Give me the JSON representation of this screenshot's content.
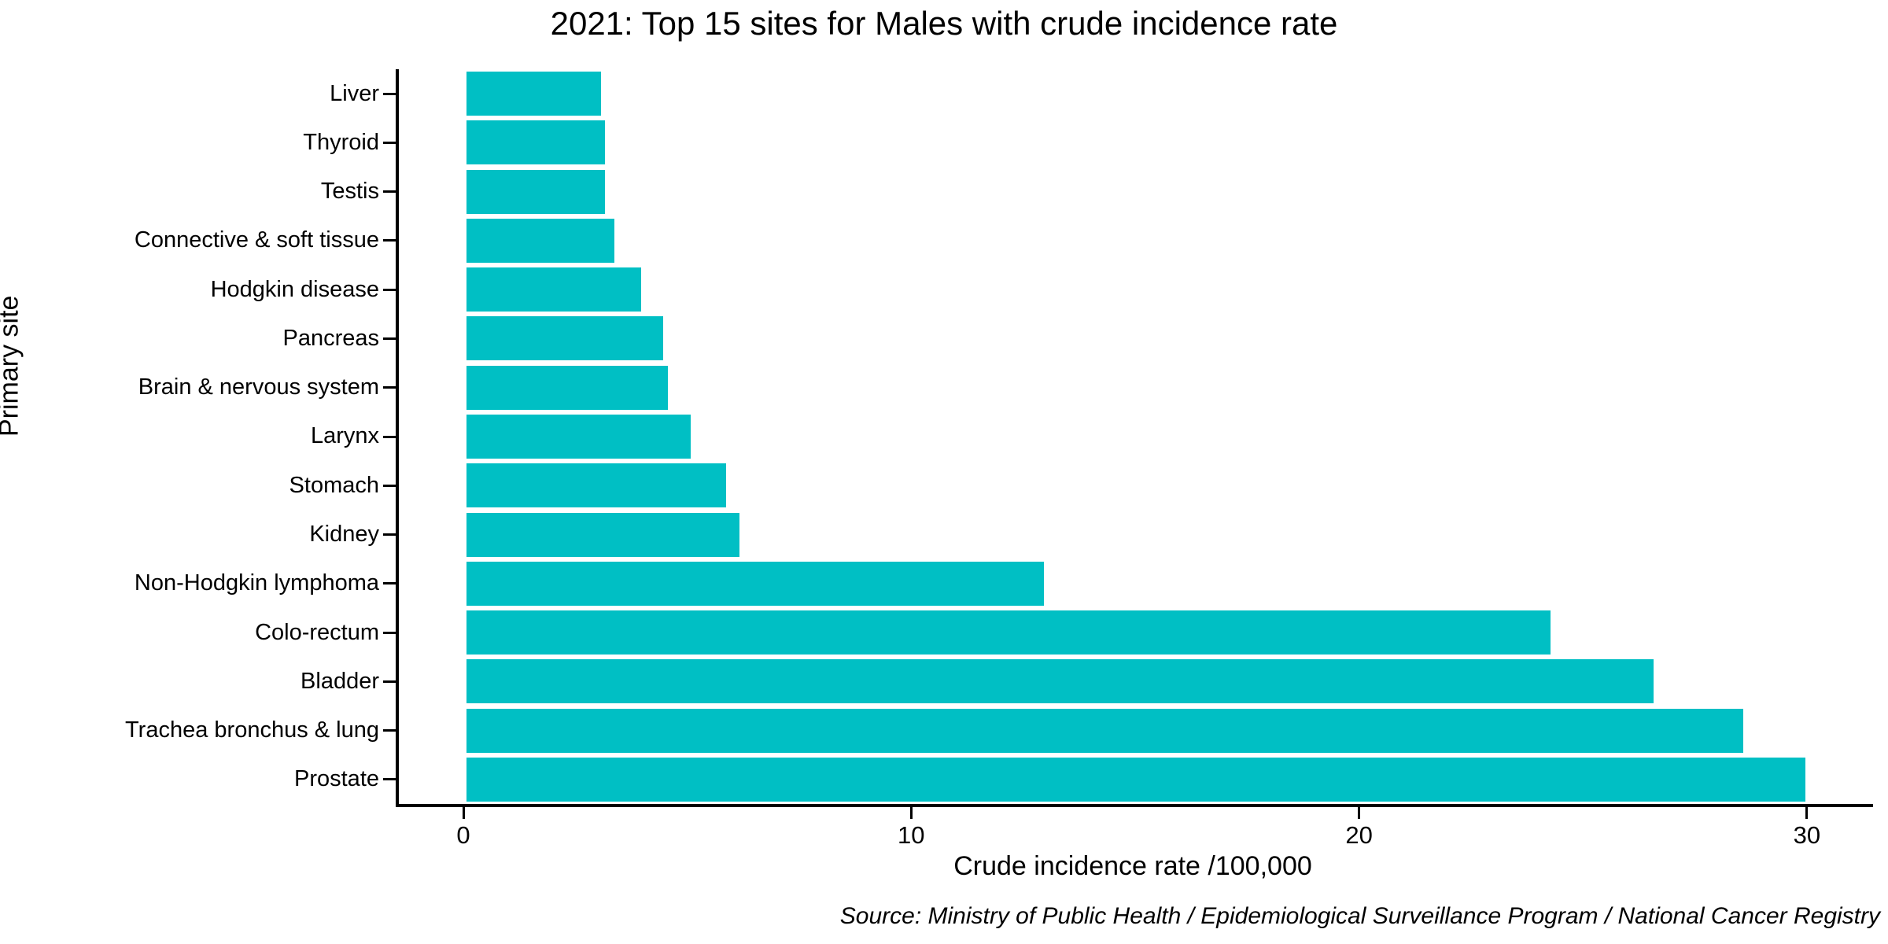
{
  "title": "2021: Top 15 sites for Males with crude incidence rate",
  "source_note": "Source: Ministry of Public Health / Epidemiological Surveillance Program / National Cancer Registry",
  "chart_data": {
    "type": "bar",
    "orientation": "horizontal",
    "title": "2021: Top 15 sites for Males with crude incidence rate",
    "xlabel": "Crude incidence rate /100,000",
    "ylabel": "Primary site",
    "categories": [
      "Liver",
      "Thyroid",
      "Testis",
      "Connective & soft tissue",
      "Hodgkin disease",
      "Pancreas",
      "Brain & nervous system",
      "Larynx",
      "Stomach",
      "Kidney",
      "Non-Hodgkin lymphoma",
      "Colo-rectum",
      "Bladder",
      "Trachea bronchus & lung",
      "Prostate"
    ],
    "values": [
      3.0,
      3.1,
      3.1,
      3.3,
      3.9,
      4.4,
      4.5,
      5.0,
      5.8,
      6.1,
      12.9,
      24.2,
      26.5,
      28.5,
      29.9
    ],
    "x_ticks": [
      0,
      10,
      20,
      30
    ],
    "xlim": [
      0,
      31.4
    ],
    "bar_color": "#00BFC4",
    "bar_width_fraction": 0.9,
    "grid": false,
    "legend": "none",
    "note": "bars sorted ascending top to bottom"
  }
}
